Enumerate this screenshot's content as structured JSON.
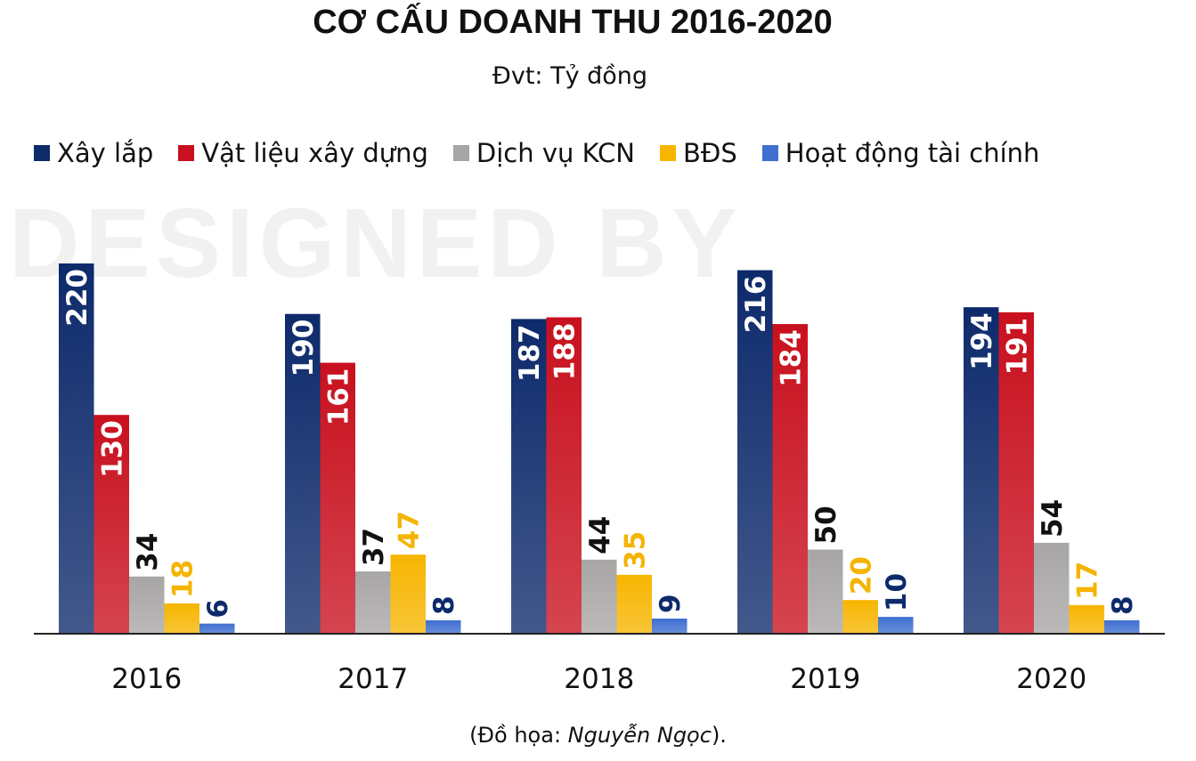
{
  "chart_data": {
    "type": "bar",
    "title": "CƠ CẤU DOANH THU 2016-2020",
    "subtitle": "Đvt: Tỷ đồng",
    "categories": [
      "2016",
      "2017",
      "2018",
      "2019",
      "2020"
    ],
    "series": [
      {
        "name": "Xây lắp",
        "values": [
          220,
          190,
          187,
          216,
          194
        ],
        "color": "#0d2a6b",
        "label_color": "#ffffff",
        "label_inside": true
      },
      {
        "name": "Vật liệu xây dựng",
        "values": [
          130,
          161,
          188,
          184,
          191
        ],
        "color": "#c8101e",
        "label_color": "#ffffff",
        "label_inside": true
      },
      {
        "name": "Dịch vụ KCN",
        "values": [
          34,
          37,
          44,
          50,
          54
        ],
        "color": "#a8a6a5",
        "label_color": "#111111",
        "label_inside": false
      },
      {
        "name": "BĐS",
        "values": [
          18,
          47,
          35,
          20,
          17
        ],
        "color": "#f7b500",
        "label_color": "#f5b400",
        "label_inside": false
      },
      {
        "name": "Hoạt động tài chính",
        "values": [
          6,
          8,
          9,
          10,
          8
        ],
        "color": "#3f6fd0",
        "label_color": "#0d2a6b",
        "label_inside": false
      }
    ],
    "ylim": [
      0,
      220
    ],
    "grid": false,
    "legend_position": "top"
  },
  "watermark": "DESIGNED BY",
  "footer": {
    "prefix": "(Đồ họa: ",
    "author": "Nguyễn Ngọc",
    "suffix": ")."
  }
}
